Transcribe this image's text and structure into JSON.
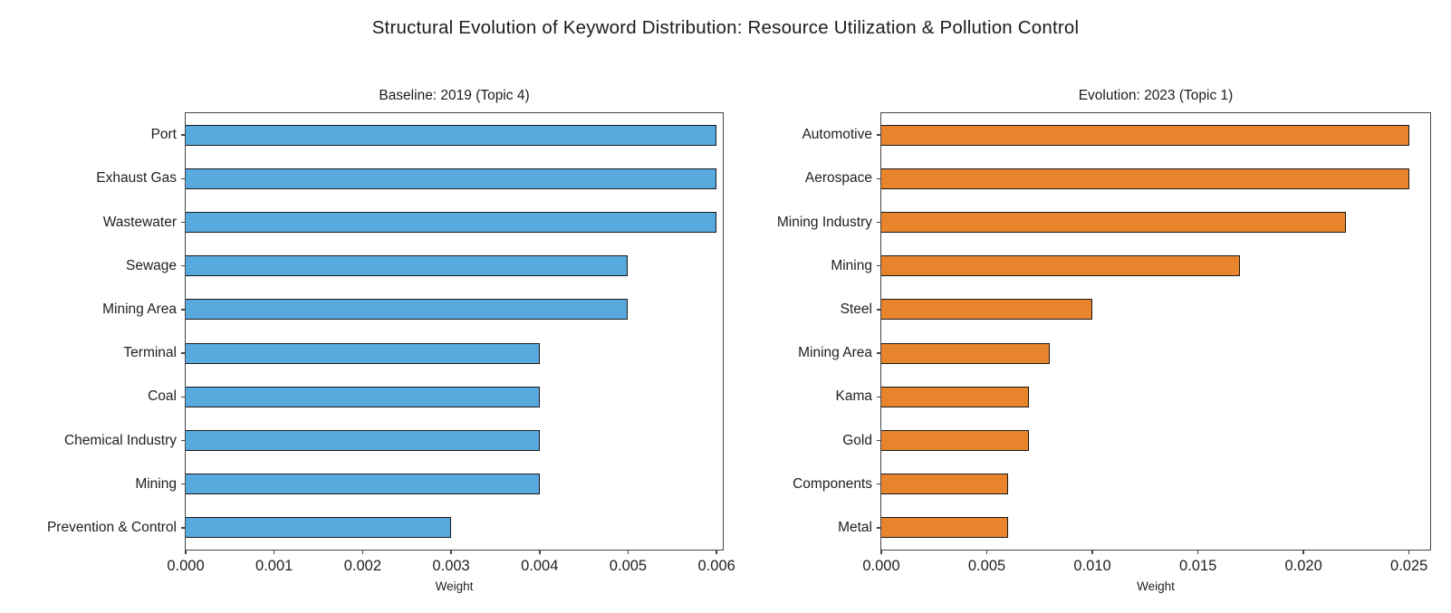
{
  "figure": {
    "title": "Structural Evolution of Keyword Distribution: Resource Utilization & Pollution Control"
  },
  "colors": {
    "baseline_bar": "#58A9DE",
    "evolution_bar": "#E8842B",
    "bar_edge": "#1a1a1a",
    "spine": "#454545",
    "text": "#212121"
  },
  "chart_data": [
    {
      "type": "bar",
      "orientation": "horizontal",
      "title": "Baseline: 2019 (Topic 4)",
      "xlabel": "Weight",
      "categories": [
        "Port",
        "Exhaust Gas",
        "Wastewater",
        "Sewage",
        "Mining Area",
        "Terminal",
        "Coal",
        "Chemical Industry",
        "Mining",
        "Prevention & Control"
      ],
      "values": [
        0.006,
        0.006,
        0.006,
        0.005,
        0.005,
        0.004,
        0.004,
        0.004,
        0.004,
        0.003
      ],
      "xlim": [
        0,
        0.00607
      ],
      "xtick_values": [
        0.0,
        0.001,
        0.002,
        0.003,
        0.004,
        0.005,
        0.006
      ],
      "xtick_labels": [
        "0.000",
        "0.001",
        "0.002",
        "0.003",
        "0.004",
        "0.005",
        "0.006"
      ],
      "grid": false,
      "legend": null,
      "bar_color": "#58A9DE"
    },
    {
      "type": "bar",
      "orientation": "horizontal",
      "title": "Evolution: 2023 (Topic 1)",
      "xlabel": "Weight",
      "categories": [
        "Automotive",
        "Aerospace",
        "Mining Industry",
        "Mining",
        "Steel",
        "Mining Area",
        "Kama",
        "Gold",
        "Components",
        "Metal"
      ],
      "values": [
        0.025,
        0.025,
        0.022,
        0.017,
        0.01,
        0.008,
        0.007,
        0.007,
        0.006,
        0.006
      ],
      "xlim": [
        0,
        0.026
      ],
      "xtick_values": [
        0.0,
        0.005,
        0.01,
        0.015,
        0.02,
        0.025
      ],
      "xtick_labels": [
        "0.000",
        "0.005",
        "0.010",
        "0.015",
        "0.020",
        "0.025"
      ],
      "grid": false,
      "legend": null,
      "bar_color": "#E8842B"
    }
  ]
}
